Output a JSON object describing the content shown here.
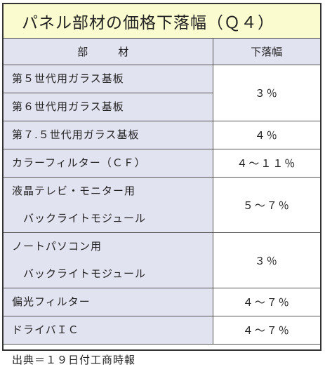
{
  "title": "パネル部材の価格下落幅（Ｑ４）",
  "headers": {
    "material": "部　材",
    "decline": "下落幅"
  },
  "rows": [
    {
      "lines": [
        "第５世代用ガラス基板",
        "第６世代用ガラス基板"
      ],
      "value": "３％"
    },
    {
      "lines": [
        "第７.５世代用ガラス基板"
      ],
      "value": "４％"
    },
    {
      "lines": [
        "カラーフィルター（ＣＦ）"
      ],
      "value": "４〜１１％"
    },
    {
      "lines": [
        "液晶テレビ・モニター用",
        "バックライトモジュール"
      ],
      "value": "５〜７％"
    },
    {
      "lines": [
        "ノートパソコン用",
        "バックライトモジュール"
      ],
      "value": "３％"
    },
    {
      "lines": [
        "偏光フィルター"
      ],
      "value": "４〜７％"
    },
    {
      "lines": [
        "ドライバＩＣ"
      ],
      "value": "４〜７％"
    }
  ],
  "footer": "出典＝１９日付工商時報"
}
